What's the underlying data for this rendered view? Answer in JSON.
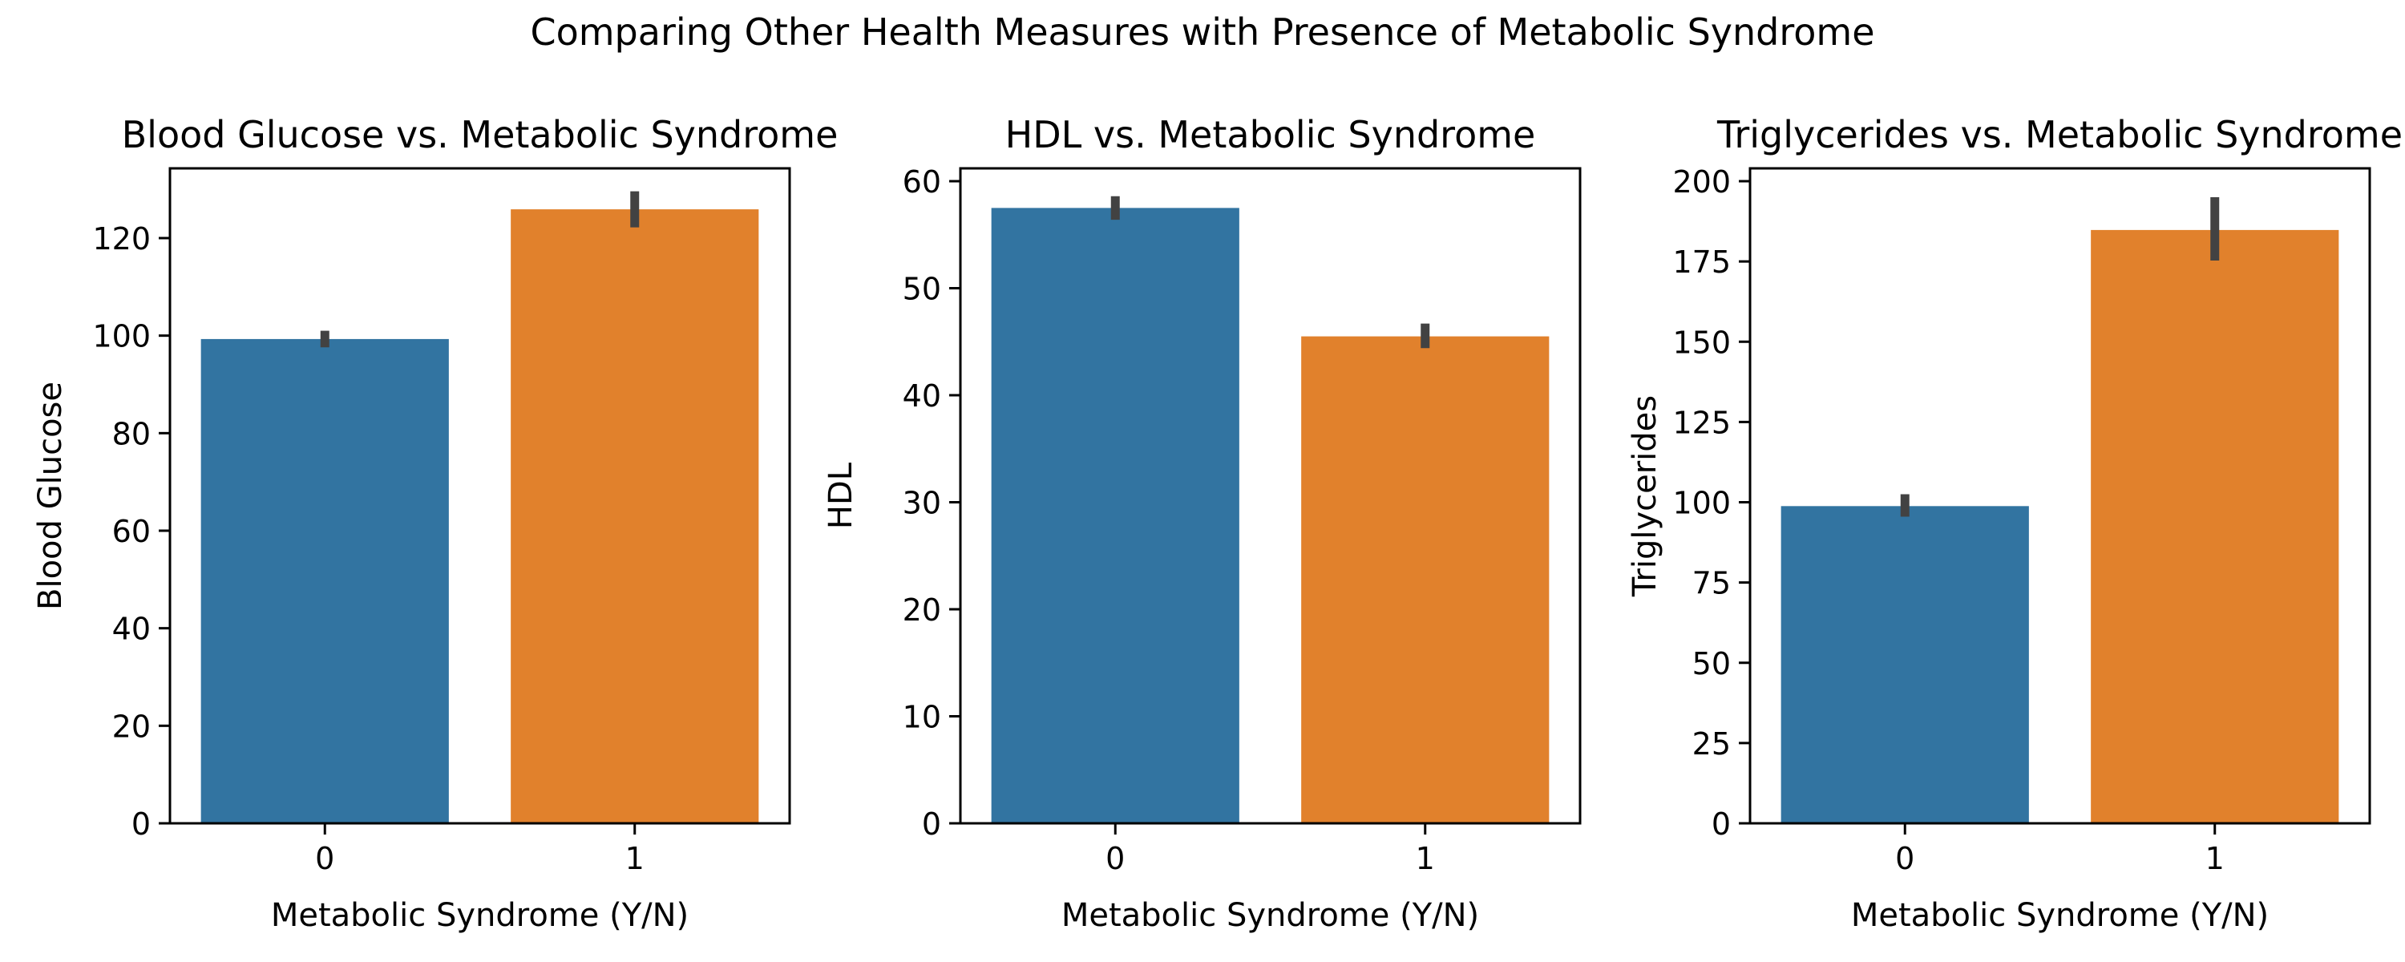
{
  "suptitle": "Comparing Other Health Measures with Presence of Metabolic Syndrome",
  "colors": {
    "category_0": "#3274a1",
    "category_1": "#e1812c",
    "errorbar": "#424242",
    "axes": "#000000"
  },
  "chart_data": [
    {
      "type": "bar",
      "title": "Blood Glucose vs. Metabolic Syndrome",
      "xlabel": "Metabolic Syndrome (Y/N)",
      "ylabel": "Blood Glucose",
      "categories": [
        "0",
        "1"
      ],
      "values": [
        99.3,
        125.9
      ],
      "error_low": [
        97.6,
        122.2
      ],
      "error_high": [
        101.0,
        129.6
      ],
      "ylim": [
        0,
        134.3
      ],
      "yticks": [
        0,
        20,
        40,
        60,
        80,
        100,
        120
      ]
    },
    {
      "type": "bar",
      "title": "HDL vs. Metabolic Syndrome",
      "xlabel": "Metabolic Syndrome (Y/N)",
      "ylabel": "HDL",
      "categories": [
        "0",
        "1"
      ],
      "values": [
        57.5,
        45.5
      ],
      "error_low": [
        56.4,
        44.4
      ],
      "error_high": [
        58.6,
        46.7
      ],
      "ylim": [
        0,
        61.2
      ],
      "yticks": [
        0,
        10,
        20,
        30,
        40,
        50,
        60
      ]
    },
    {
      "type": "bar",
      "title": "Triglycerides vs. Metabolic Syndrome",
      "xlabel": "Metabolic Syndrome (Y/N)",
      "ylabel": "Triglycerides",
      "categories": [
        "0",
        "1"
      ],
      "values": [
        98.8,
        184.8
      ],
      "error_low": [
        95.5,
        175.3
      ],
      "error_high": [
        102.5,
        195.0
      ],
      "ylim": [
        0,
        204.0
      ],
      "yticks": [
        0,
        25,
        50,
        75,
        100,
        125,
        150,
        175,
        200
      ]
    }
  ]
}
